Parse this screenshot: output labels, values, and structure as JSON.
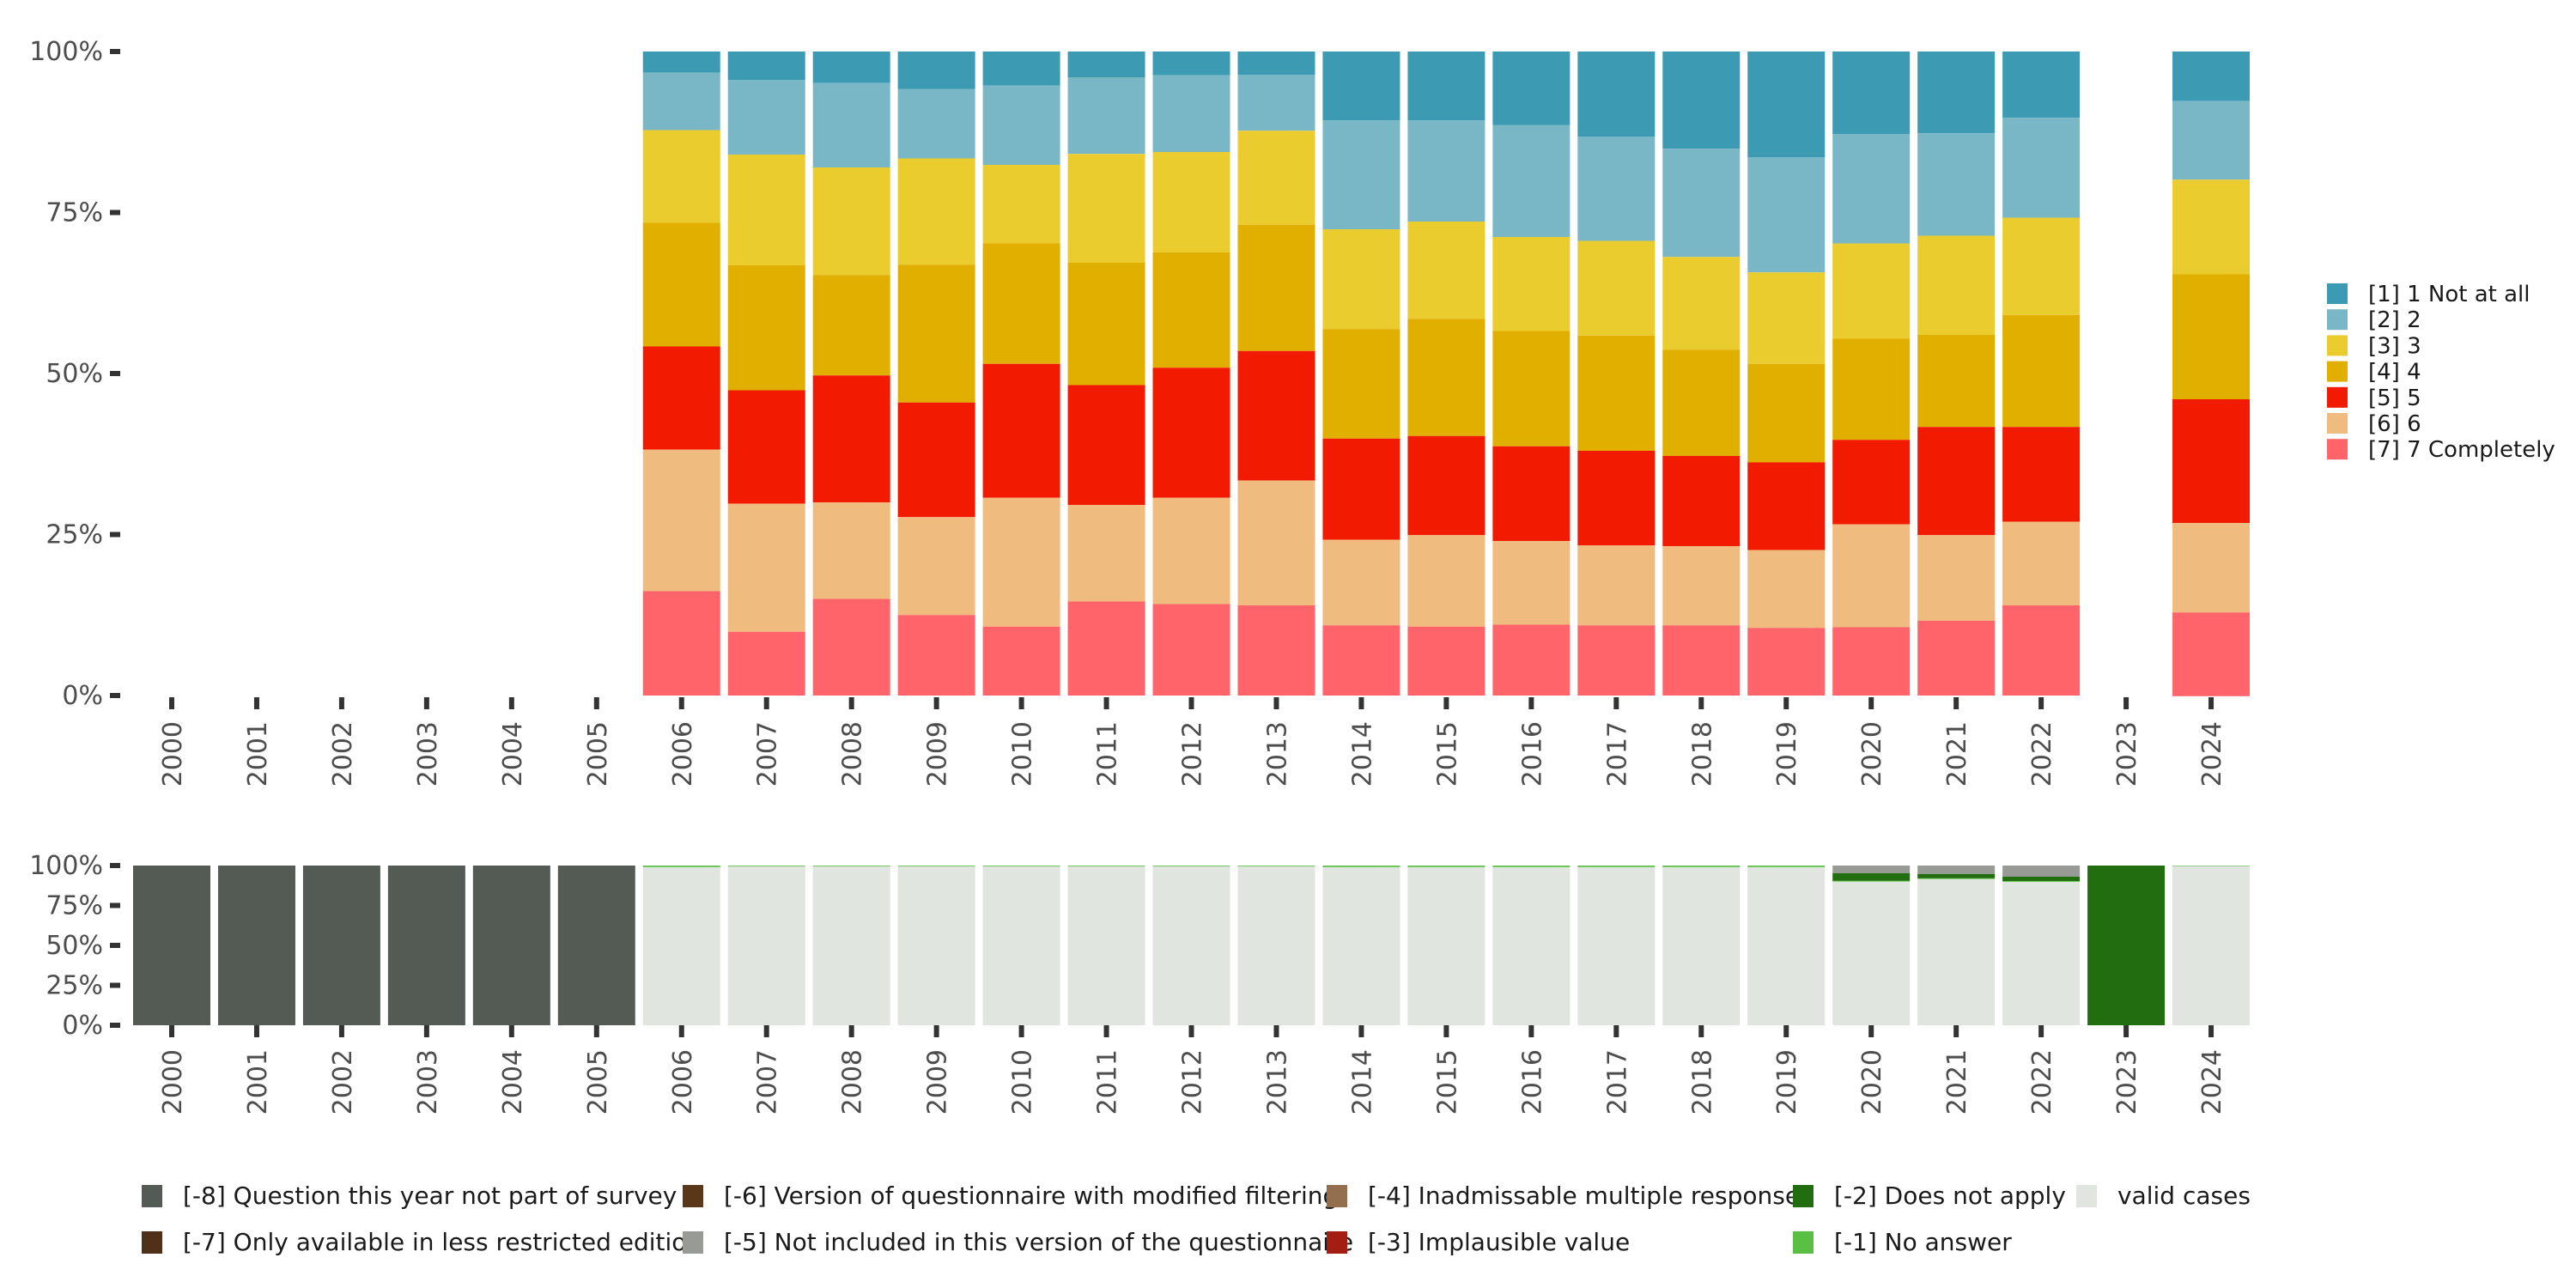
{
  "chart_data": [
    {
      "type": "bar",
      "stacked": true,
      "normalized": true,
      "title": "",
      "xlabel": "",
      "ylabel": "",
      "ylim": [
        0,
        100
      ],
      "yticks": [
        "0%",
        "25%",
        "50%",
        "75%",
        "100%"
      ],
      "grid": false,
      "legend_position": "right",
      "categories": [
        "2000",
        "2001",
        "2002",
        "2003",
        "2004",
        "2005",
        "2006",
        "2007",
        "2008",
        "2009",
        "2010",
        "2011",
        "2012",
        "2013",
        "2014",
        "2015",
        "2016",
        "2017",
        "2018",
        "2019",
        "2020",
        "2021",
        "2022",
        "2023",
        "2024"
      ],
      "series": [
        {
          "name": "[1] 1 Not at all",
          "color": "#3c9ab3",
          "values": [
            null,
            null,
            null,
            null,
            null,
            null,
            3.3,
            4.4,
            4.9,
            5.8,
            5.3,
            4.0,
            3.7,
            3.6,
            10.7,
            10.7,
            11.4,
            13.2,
            15.1,
            16.4,
            12.8,
            12.7,
            10.3,
            null,
            7.7
          ]
        },
        {
          "name": "[2] 2",
          "color": "#79b7c6",
          "values": [
            null,
            null,
            null,
            null,
            null,
            null,
            8.9,
            11.6,
            13.1,
            10.8,
            12.3,
            11.9,
            11.9,
            8.7,
            16.9,
            15.7,
            17.4,
            16.2,
            16.8,
            17.9,
            17.0,
            15.9,
            15.5,
            null,
            12.2
          ]
        },
        {
          "name": "[3] 3",
          "color": "#ebcc2e",
          "values": [
            null,
            null,
            null,
            null,
            null,
            null,
            14.4,
            17.2,
            16.7,
            16.5,
            12.2,
            16.9,
            15.6,
            14.6,
            15.5,
            15.1,
            14.6,
            14.7,
            14.4,
            14.2,
            14.8,
            15.4,
            15.1,
            null,
            14.7
          ]
        },
        {
          "name": "[4] 4",
          "color": "#e1af00",
          "values": [
            null,
            null,
            null,
            null,
            null,
            null,
            19.2,
            19.4,
            15.6,
            21.4,
            18.7,
            19.0,
            17.9,
            19.6,
            17.0,
            18.2,
            17.9,
            17.9,
            16.5,
            15.3,
            15.7,
            14.3,
            17.4,
            null,
            19.4
          ]
        },
        {
          "name": "[5] 5",
          "color": "#f21a00",
          "values": [
            null,
            null,
            null,
            null,
            null,
            null,
            16.0,
            17.6,
            19.7,
            17.8,
            20.8,
            18.6,
            20.2,
            20.1,
            15.7,
            15.4,
            14.7,
            14.7,
            14.0,
            13.6,
            13.1,
            16.8,
            14.7,
            null,
            19.2
          ]
        },
        {
          "name": "[6] 6",
          "color": "#f0bb7e",
          "values": [
            null,
            null,
            null,
            null,
            null,
            null,
            22.0,
            19.9,
            15.0,
            15.2,
            20.0,
            15.0,
            16.5,
            19.4,
            13.3,
            14.2,
            13.0,
            12.4,
            12.3,
            12.1,
            16.0,
            13.3,
            13.0,
            null,
            13.9
          ]
        },
        {
          "name": "[7] 7 Completely",
          "color": "#fe6469",
          "values": [
            null,
            null,
            null,
            null,
            null,
            null,
            16.2,
            9.9,
            15.0,
            12.5,
            10.7,
            14.6,
            14.2,
            14.0,
            10.9,
            10.7,
            11.0,
            10.9,
            10.9,
            10.5,
            10.6,
            11.6,
            14.0,
            null,
            13.0
          ]
        }
      ]
    },
    {
      "type": "bar",
      "stacked": true,
      "normalized": true,
      "title": "",
      "xlabel": "",
      "ylabel": "",
      "ylim": [
        0,
        100
      ],
      "yticks": [
        "0%",
        "25%",
        "50%",
        "75%",
        "100%"
      ],
      "grid": false,
      "legend_position": "bottom",
      "categories": [
        "2000",
        "2001",
        "2002",
        "2003",
        "2004",
        "2005",
        "2006",
        "2007",
        "2008",
        "2009",
        "2010",
        "2011",
        "2012",
        "2013",
        "2014",
        "2015",
        "2016",
        "2017",
        "2018",
        "2019",
        "2020",
        "2021",
        "2022",
        "2023",
        "2024"
      ],
      "series": [
        {
          "name": "[-8] Question this year not part of survey",
          "color": "#545b55",
          "values": [
            100,
            100,
            100,
            100,
            100,
            100,
            0,
            0,
            0,
            0,
            0,
            0,
            0,
            0,
            0,
            0,
            0,
            0,
            0,
            0,
            0,
            0,
            0,
            0,
            0
          ]
        },
        {
          "name": "[-7] Only available in less restricted edition",
          "color": "#4f3119",
          "values": [
            0,
            0,
            0,
            0,
            0,
            0,
            0,
            0,
            0,
            0,
            0,
            0,
            0,
            0,
            0,
            0,
            0,
            0,
            0,
            0,
            0,
            0,
            0,
            0,
            0
          ]
        },
        {
          "name": "[-6] Version of questionnaire with modified filtering",
          "color": "#5a3719",
          "values": [
            0,
            0,
            0,
            0,
            0,
            0,
            0,
            0,
            0,
            0,
            0,
            0,
            0,
            0,
            0,
            0,
            0,
            0,
            0,
            0,
            0,
            0,
            0,
            0,
            0
          ]
        },
        {
          "name": "[-5] Not included in this version of the questionnaire",
          "color": "#989b95",
          "values": [
            0,
            0,
            0,
            0,
            0,
            0,
            0,
            0,
            0,
            0,
            0,
            0,
            0,
            0,
            0,
            0,
            0,
            0,
            0,
            0,
            4.8,
            5.3,
            7.0,
            0,
            0
          ]
        },
        {
          "name": "[-4] Inadmissable multiple response",
          "color": "#946f4d",
          "values": [
            0,
            0,
            0,
            0,
            0,
            0,
            0,
            0,
            0,
            0,
            0,
            0,
            0,
            0,
            0,
            0,
            0,
            0,
            0,
            0,
            0,
            0,
            0,
            0,
            0
          ]
        },
        {
          "name": "[-3] Implausible value",
          "color": "#a41d13",
          "values": [
            0,
            0,
            0,
            0,
            0,
            0,
            0,
            0,
            0,
            0,
            0,
            0,
            0,
            0,
            0,
            0,
            0,
            0,
            0,
            0,
            0,
            0,
            0,
            0,
            0
          ]
        },
        {
          "name": "[-2] Does not apply",
          "color": "#226d10",
          "values": [
            0,
            0,
            0,
            0,
            0,
            0,
            0,
            0,
            0,
            0,
            0,
            0,
            0,
            0,
            0,
            0,
            0,
            0,
            0,
            0,
            4.8,
            2.7,
            2.7,
            100,
            0
          ]
        },
        {
          "name": "[-1] No answer",
          "color": "#5ac043",
          "values": [
            0,
            0,
            0,
            0,
            0,
            0,
            1.0,
            0.5,
            0.5,
            0.5,
            0.5,
            0.5,
            0.5,
            0.5,
            1.0,
            1.0,
            1.0,
            1.0,
            1.0,
            1.0,
            0.5,
            0.5,
            0.5,
            0,
            0.4
          ]
        },
        {
          "name": "valid cases",
          "color": "#e0e5df",
          "values": [
            0,
            0,
            0,
            0,
            0,
            0,
            99.0,
            99.5,
            99.5,
            99.5,
            99.5,
            99.5,
            99.5,
            99.5,
            99.0,
            99.0,
            99.0,
            99.0,
            99.0,
            99.0,
            89.9,
            91.5,
            89.8,
            0,
            99.6
          ]
        }
      ],
      "legend_rows": [
        [
          "[-8] Question this year not part of survey",
          "[-6] Version of questionnaire with modified filtering",
          "[-4] Inadmissable multiple response",
          "[-2] Does not apply",
          "valid cases"
        ],
        [
          "[-7] Only available in less restricted edition",
          "[-5] Not included in this version of the questionnaire",
          "[-3] Implausible value",
          "[-1] No answer"
        ]
      ]
    }
  ]
}
